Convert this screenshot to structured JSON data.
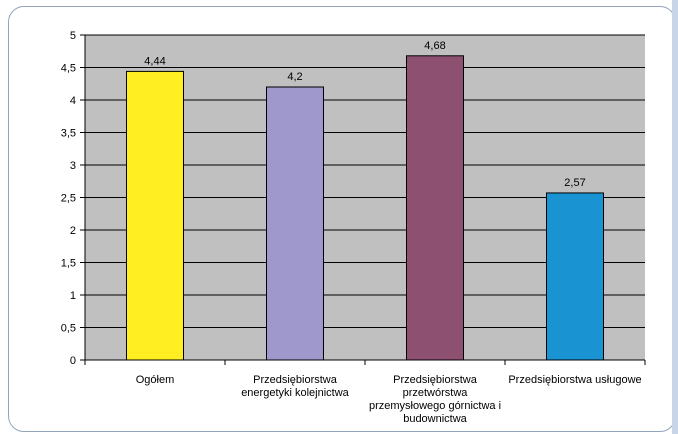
{
  "chart_data": {
    "type": "bar",
    "categories": [
      [
        "Ogółem"
      ],
      [
        "Przedsiębiorstwa",
        "energetyki kolejnictwa"
      ],
      [
        "Przedsiębiorstwa",
        "przetwórstwa",
        "przemysłowego górnictwa i",
        "budownictwa"
      ],
      [
        "Przedsiębiorstwa usługowe"
      ]
    ],
    "values": [
      4.44,
      4.2,
      4.68,
      2.57
    ],
    "value_labels": [
      "4,44",
      "4,2",
      "4,68",
      "2,57"
    ],
    "bar_colors": [
      "#ffee22",
      "#9e98cc",
      "#8e5070",
      "#1a93d2"
    ],
    "ylim": [
      0,
      5
    ],
    "yticks": [
      0,
      0.5,
      1,
      1.5,
      2,
      2.5,
      3,
      3.5,
      4,
      4.5,
      5
    ],
    "ytick_labels": [
      "0",
      "0,5",
      "1",
      "1,5",
      "2",
      "2,5",
      "3",
      "3,5",
      "4",
      "4,5",
      "5"
    ],
    "grid": true,
    "plot_background": "#c0c0c0"
  }
}
